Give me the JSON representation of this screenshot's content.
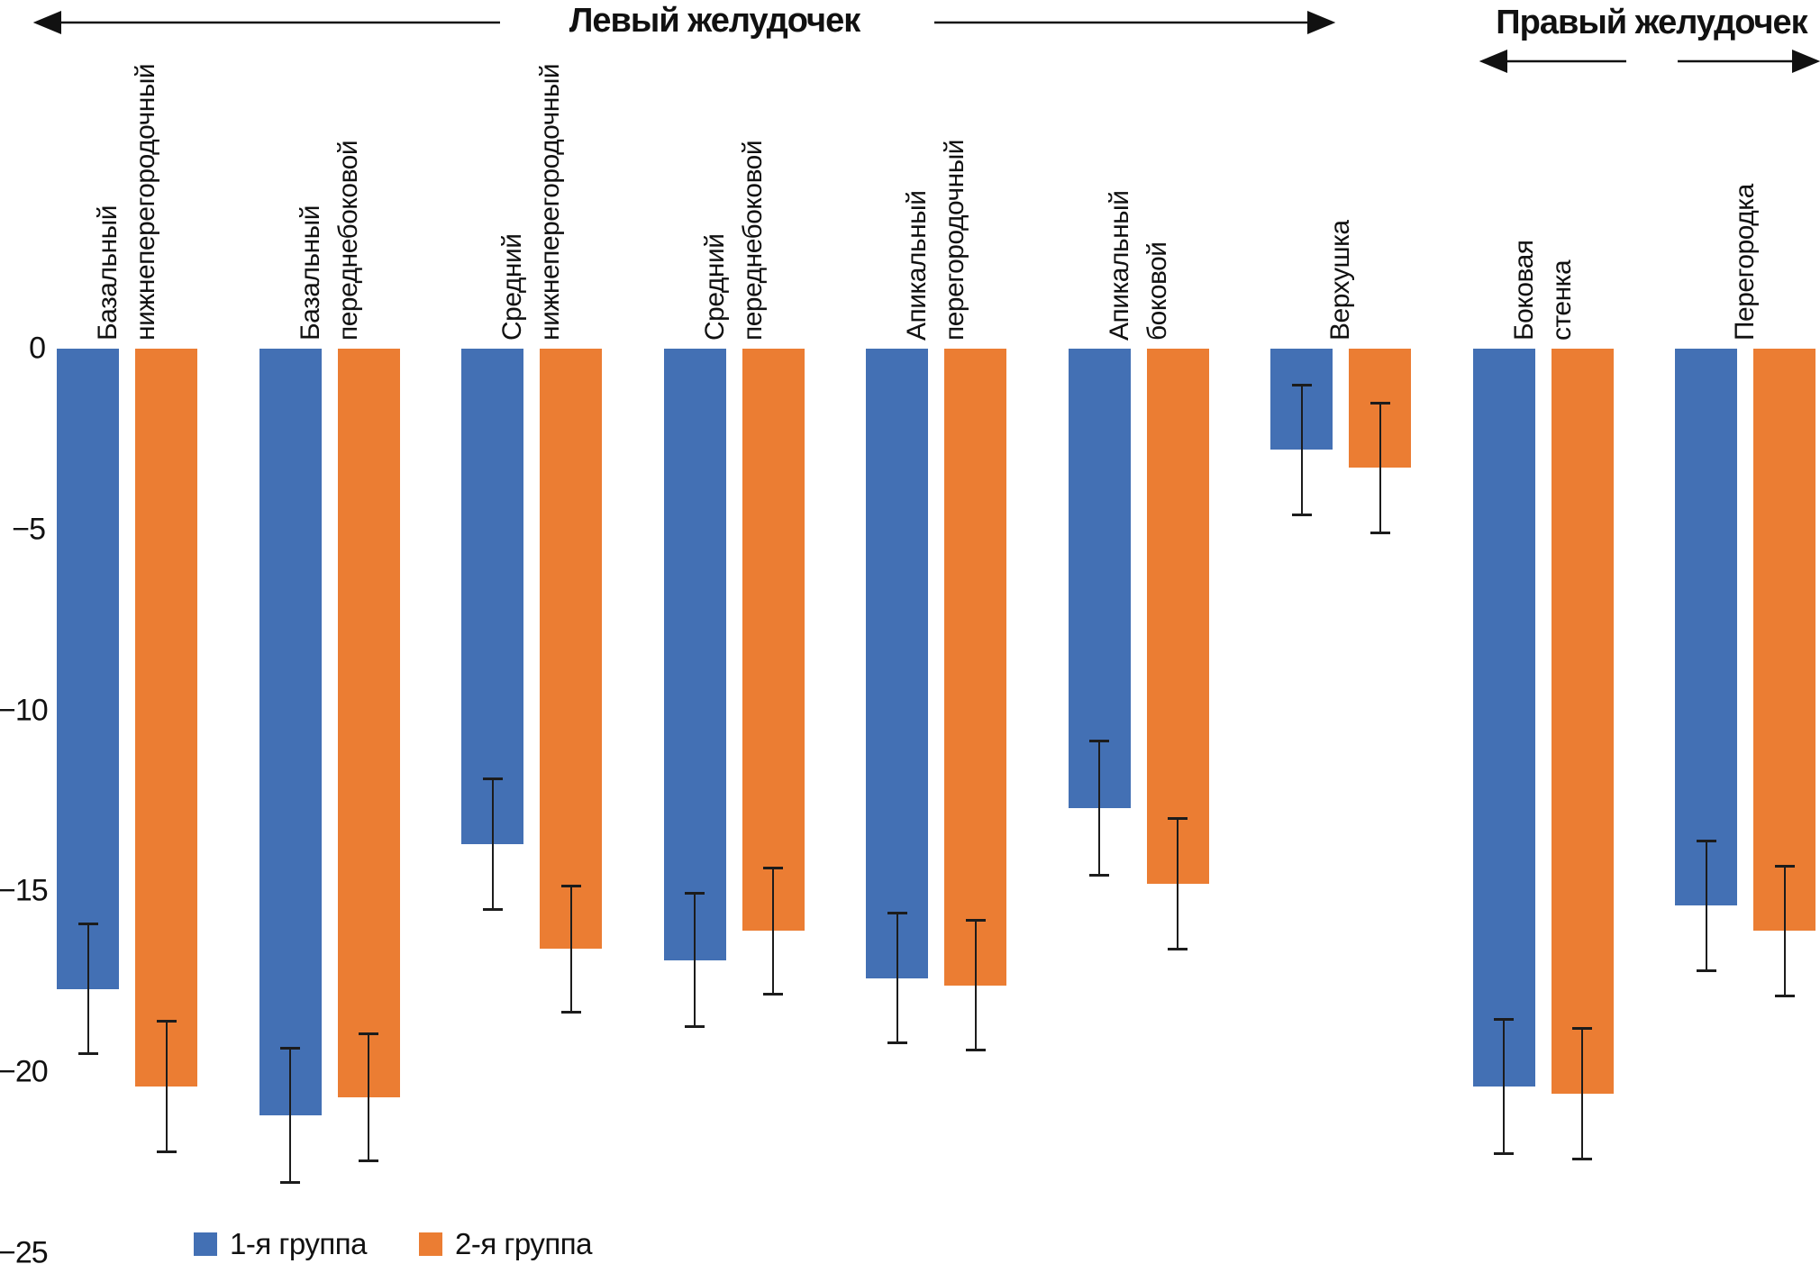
{
  "chart_data": {
    "type": "bar",
    "orientation": "vertical-negative",
    "sections": [
      {
        "label": "Левый желудочек",
        "category_range": [
          0,
          6
        ]
      },
      {
        "label": "Правый желудочек",
        "category_range": [
          7,
          8
        ]
      }
    ],
    "categories": [
      "Базальный\nнижнеперегородочный",
      "Базальный\nпереднебоковой",
      "Средний\nнижнеперегородочный",
      "Средний\nпереднебоковой",
      "Апикальный\nперегородочный",
      "Апикальный\nбоковой",
      "Верхушка",
      "Боковая\nстенка",
      "Перегородка"
    ],
    "series": [
      {
        "name": "1-я группа",
        "color": "#4370B4",
        "values": [
          -17.7,
          -21.2,
          -13.7,
          -16.9,
          -17.4,
          -12.7,
          -2.8,
          -20.4,
          -15.4
        ],
        "errors": [
          1.8,
          1.85,
          1.8,
          1.85,
          1.8,
          1.85,
          1.8,
          1.85,
          1.8
        ]
      },
      {
        "name": "2-я группа",
        "color": "#EB7D33",
        "values": [
          -20.4,
          -20.7,
          -16.6,
          -16.1,
          -17.6,
          -14.8,
          -3.3,
          -20.6,
          -16.1
        ],
        "errors": [
          1.8,
          1.75,
          1.75,
          1.75,
          1.8,
          1.8,
          1.8,
          1.8,
          1.8
        ]
      }
    ],
    "y_ticks": [
      "0",
      "−5",
      "−10",
      "−15",
      "−20",
      "−25"
    ],
    "y_tick_values": [
      0,
      -5,
      -10,
      -15,
      -20,
      -25
    ],
    "ylim": [
      0,
      -25
    ],
    "grid": false,
    "axis_lines": false,
    "error_bar_color": "#1c1c1c",
    "legend": [
      "1-я группа",
      "2-я группа"
    ],
    "legend_position": "bottom-left"
  },
  "titles": {
    "left_ventricle": "Левый желудочек",
    "right_ventricle": "Правый желудочек"
  },
  "legend": {
    "group1": "1-я группа",
    "group2": "2-я группа"
  }
}
